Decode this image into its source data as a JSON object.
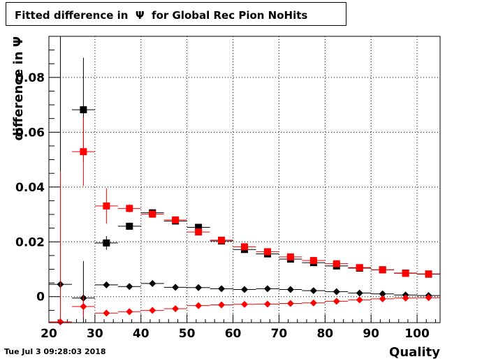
{
  "chart_data": {
    "type": "scatter",
    "title": "Fitted difference in  Ψ  for Global Rec Pion NoHits",
    "xlabel": "Quality",
    "ylabel": "difference in  Ψ",
    "xlim": [
      20,
      105
    ],
    "ylim": [
      -0.0095,
      0.095
    ],
    "x_ticks": [
      20,
      30,
      40,
      50,
      60,
      70,
      80,
      90,
      100
    ],
    "y_ticks": [
      0,
      0.02,
      0.04,
      0.06,
      0.08
    ],
    "y_tick_labels": [
      "0",
      "0.02",
      "0.04",
      "0.06",
      "0.08"
    ],
    "grid": true,
    "series": [
      {
        "marker": "square",
        "color": "#000000",
        "points": [
          {
            "x": 27.5,
            "y": 0.0682,
            "xerr": 2.5,
            "yerr": 0.019
          },
          {
            "x": 32.5,
            "y": 0.0196,
            "xerr": 2.5,
            "yerr": 0.0025
          },
          {
            "x": 37.5,
            "y": 0.0257,
            "xerr": 2.5,
            "yerr": 0.0012
          },
          {
            "x": 42.5,
            "y": 0.0306,
            "xerr": 2.5,
            "yerr": 0.0008
          },
          {
            "x": 47.5,
            "y": 0.0276,
            "xerr": 2.5,
            "yerr": 0.0006
          },
          {
            "x": 52.5,
            "y": 0.0253,
            "xerr": 2.5,
            "yerr": 0.0005
          },
          {
            "x": 57.5,
            "y": 0.0203,
            "xerr": 2.5,
            "yerr": 0.0004
          },
          {
            "x": 62.5,
            "y": 0.0172,
            "xerr": 2.5,
            "yerr": 0.0004
          },
          {
            "x": 67.5,
            "y": 0.0156,
            "xerr": 2.5,
            "yerr": 0.0003
          },
          {
            "x": 72.5,
            "y": 0.0137,
            "xerr": 2.5,
            "yerr": 0.0003
          },
          {
            "x": 77.5,
            "y": 0.0124,
            "xerr": 2.5,
            "yerr": 0.0003
          },
          {
            "x": 82.5,
            "y": 0.0112,
            "xerr": 2.5,
            "yerr": 0.0003
          },
          {
            "x": 87.5,
            "y": 0.0104,
            "xerr": 2.5,
            "yerr": 0.0003
          },
          {
            "x": 92.5,
            "y": 0.0098,
            "xerr": 2.5,
            "yerr": 0.0003
          },
          {
            "x": 97.5,
            "y": 0.0086,
            "xerr": 2.5,
            "yerr": 0.0003
          },
          {
            "x": 102.5,
            "y": 0.0082,
            "xerr": 2.5,
            "yerr": 0.0003
          }
        ]
      },
      {
        "marker": "square",
        "color": "#ff0000",
        "points": [
          {
            "x": 27.5,
            "y": 0.0529,
            "xerr": 2.5,
            "yerr": 0.0125
          },
          {
            "x": 32.5,
            "y": 0.0331,
            "xerr": 2.5,
            "yerr": 0.0065
          },
          {
            "x": 37.5,
            "y": 0.0322,
            "xerr": 2.5,
            "yerr": 0.0015
          },
          {
            "x": 42.5,
            "y": 0.0301,
            "xerr": 2.5,
            "yerr": 0.0008
          },
          {
            "x": 47.5,
            "y": 0.028,
            "xerr": 2.5,
            "yerr": 0.0006
          },
          {
            "x": 52.5,
            "y": 0.0236,
            "xerr": 2.5,
            "yerr": 0.0005
          },
          {
            "x": 57.5,
            "y": 0.0206,
            "xerr": 2.5,
            "yerr": 0.0004
          },
          {
            "x": 62.5,
            "y": 0.0182,
            "xerr": 2.5,
            "yerr": 0.0004
          },
          {
            "x": 67.5,
            "y": 0.0164,
            "xerr": 2.5,
            "yerr": 0.0003
          },
          {
            "x": 72.5,
            "y": 0.0145,
            "xerr": 2.5,
            "yerr": 0.0003
          },
          {
            "x": 77.5,
            "y": 0.0132,
            "xerr": 2.5,
            "yerr": 0.0003
          },
          {
            "x": 82.5,
            "y": 0.012,
            "xerr": 2.5,
            "yerr": 0.0003
          },
          {
            "x": 87.5,
            "y": 0.0106,
            "xerr": 2.5,
            "yerr": 0.0003
          },
          {
            "x": 92.5,
            "y": 0.0098,
            "xerr": 2.5,
            "yerr": 0.0003
          },
          {
            "x": 97.5,
            "y": 0.0085,
            "xerr": 2.5,
            "yerr": 0.0003
          },
          {
            "x": 102.5,
            "y": 0.0083,
            "xerr": 2.5,
            "yerr": 0.0003
          }
        ]
      },
      {
        "marker": "diamond",
        "color": "#000000",
        "points": [
          {
            "x": 22.5,
            "y": 0.0045,
            "xerr": 2.5,
            "yerr": 0.095
          },
          {
            "x": 27.5,
            "y": -0.0005,
            "xerr": 2.5,
            "yerr": 0.0135
          },
          {
            "x": 32.5,
            "y": 0.0043,
            "xerr": 2.5,
            "yerr": 0.0012
          },
          {
            "x": 37.5,
            "y": 0.0037,
            "xerr": 2.5,
            "yerr": 0.0006
          },
          {
            "x": 42.5,
            "y": 0.0048,
            "xerr": 2.5,
            "yerr": 0.0005
          },
          {
            "x": 47.5,
            "y": 0.0034,
            "xerr": 2.5,
            "yerr": 0.0004
          },
          {
            "x": 52.5,
            "y": 0.0033,
            "xerr": 2.5,
            "yerr": 0.0003
          },
          {
            "x": 57.5,
            "y": 0.0029,
            "xerr": 2.5,
            "yerr": 0.0003
          },
          {
            "x": 62.5,
            "y": 0.0026,
            "xerr": 2.5,
            "yerr": 0.0003
          },
          {
            "x": 67.5,
            "y": 0.0029,
            "xerr": 2.5,
            "yerr": 0.0003
          },
          {
            "x": 72.5,
            "y": 0.0026,
            "xerr": 2.5,
            "yerr": 0.0003
          },
          {
            "x": 77.5,
            "y": 0.0022,
            "xerr": 2.5,
            "yerr": 0.0003
          },
          {
            "x": 82.5,
            "y": 0.0018,
            "xerr": 2.5,
            "yerr": 0.0003
          },
          {
            "x": 87.5,
            "y": 0.0013,
            "xerr": 2.5,
            "yerr": 0.0003
          },
          {
            "x": 92.5,
            "y": 0.001,
            "xerr": 2.5,
            "yerr": 0.0003
          },
          {
            "x": 97.5,
            "y": 0.0006,
            "xerr": 2.5,
            "yerr": 0.0003
          },
          {
            "x": 102.5,
            "y": 0.0004,
            "xerr": 2.5,
            "yerr": 0.0003
          }
        ]
      },
      {
        "marker": "diamond",
        "color": "#ff0000",
        "points": [
          {
            "x": 22.5,
            "y": -0.0092,
            "xerr": 2.5,
            "yerr": 0.055
          },
          {
            "x": 27.5,
            "y": -0.0036,
            "xerr": 2.5,
            "yerr": 0.004
          },
          {
            "x": 32.5,
            "y": -0.006,
            "xerr": 2.5,
            "yerr": 0.0012
          },
          {
            "x": 37.5,
            "y": -0.0055,
            "xerr": 2.5,
            "yerr": 0.0006
          },
          {
            "x": 42.5,
            "y": -0.005,
            "xerr": 2.5,
            "yerr": 0.0005
          },
          {
            "x": 47.5,
            "y": -0.0044,
            "xerr": 2.5,
            "yerr": 0.0004
          },
          {
            "x": 52.5,
            "y": -0.0033,
            "xerr": 2.5,
            "yerr": 0.0003
          },
          {
            "x": 57.5,
            "y": -0.003,
            "xerr": 2.5,
            "yerr": 0.0003
          },
          {
            "x": 62.5,
            "y": -0.0028,
            "xerr": 2.5,
            "yerr": 0.0003
          },
          {
            "x": 67.5,
            "y": -0.0027,
            "xerr": 2.5,
            "yerr": 0.0003
          },
          {
            "x": 72.5,
            "y": -0.0025,
            "xerr": 2.5,
            "yerr": 0.0003
          },
          {
            "x": 77.5,
            "y": -0.0023,
            "xerr": 2.5,
            "yerr": 0.0003
          },
          {
            "x": 82.5,
            "y": -0.0017,
            "xerr": 2.5,
            "yerr": 0.0003
          },
          {
            "x": 87.5,
            "y": -0.0012,
            "xerr": 2.5,
            "yerr": 0.0003
          },
          {
            "x": 92.5,
            "y": -0.0008,
            "xerr": 2.5,
            "yerr": 0.0003
          },
          {
            "x": 97.5,
            "y": -0.0005,
            "xerr": 2.5,
            "yerr": 0.0003
          },
          {
            "x": 102.5,
            "y": -0.0004,
            "xerr": 2.5,
            "yerr": 0.0003
          }
        ]
      }
    ]
  },
  "footer": {
    "date": "Tue Jul  3 09:28:03 2018"
  }
}
